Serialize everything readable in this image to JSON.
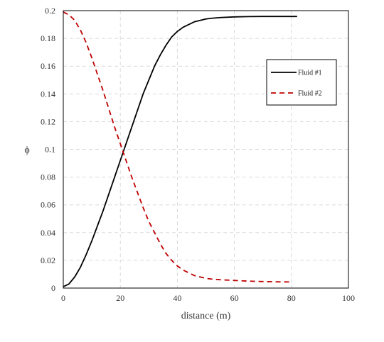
{
  "chart_data": {
    "type": "line",
    "title": "",
    "xlabel": "distance (m)",
    "ylabel": "ϕ",
    "xlim": [
      0,
      100
    ],
    "ylim": [
      0,
      0.2
    ],
    "xticks": [
      0,
      20,
      40,
      60,
      80,
      100
    ],
    "yticks": [
      0,
      0.02,
      0.04,
      0.06,
      0.08,
      0.1,
      0.12,
      0.14,
      0.16,
      0.18,
      0.2
    ],
    "grid": true,
    "legend_position": "top-right",
    "series": [
      {
        "name": "Fluid #1",
        "color": "#000000",
        "style": "solid",
        "x": [
          0,
          2,
          4,
          6,
          8,
          10,
          12,
          14,
          16,
          18,
          20,
          22,
          24,
          26,
          28,
          30,
          32,
          34,
          36,
          38,
          40,
          42,
          44,
          46,
          48,
          50,
          52,
          55,
          60,
          65,
          70,
          75,
          80,
          82
        ],
        "y": [
          0.001,
          0.003,
          0.008,
          0.015,
          0.024,
          0.034,
          0.045,
          0.056,
          0.068,
          0.08,
          0.092,
          0.104,
          0.116,
          0.128,
          0.14,
          0.15,
          0.16,
          0.168,
          0.175,
          0.181,
          0.185,
          0.188,
          0.19,
          0.192,
          0.193,
          0.194,
          0.1945,
          0.195,
          0.1955,
          0.1957,
          0.1958,
          0.1958,
          0.1958,
          0.1958
        ]
      },
      {
        "name": "Fluid #2",
        "color": "#c00000",
        "style": "dashed",
        "x": [
          0,
          2,
          4,
          6,
          8,
          10,
          12,
          14,
          16,
          18,
          20,
          22,
          24,
          26,
          28,
          30,
          32,
          34,
          36,
          38,
          40,
          42,
          44,
          46,
          48,
          50,
          52,
          55,
          60,
          65,
          70,
          75,
          80
        ],
        "y": [
          0.199,
          0.197,
          0.193,
          0.186,
          0.177,
          0.166,
          0.154,
          0.142,
          0.129,
          0.116,
          0.104,
          0.092,
          0.08,
          0.069,
          0.058,
          0.048,
          0.04,
          0.032,
          0.025,
          0.02,
          0.016,
          0.013,
          0.011,
          0.009,
          0.008,
          0.007,
          0.0065,
          0.006,
          0.0055,
          0.005,
          0.0047,
          0.0045,
          0.0044
        ]
      }
    ]
  }
}
